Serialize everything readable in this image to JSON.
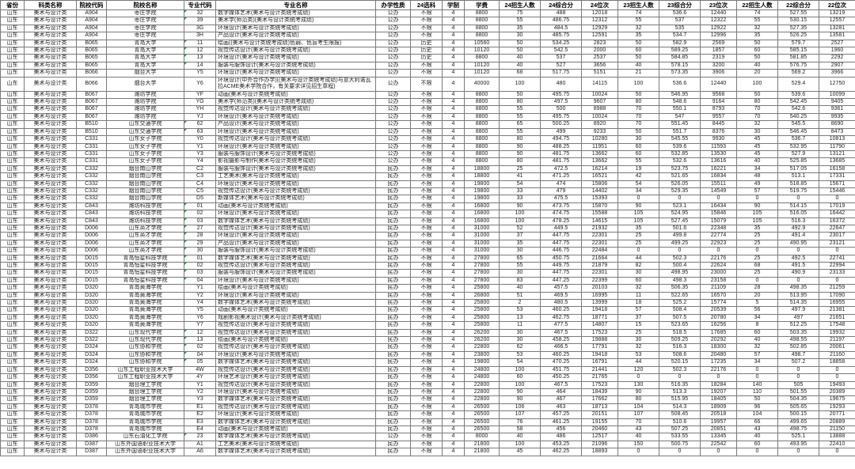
{
  "table": {
    "columns": [
      "省份",
      "科类名称",
      "院校代码",
      "院校名称",
      "专业代码",
      "专业名称",
      "办学性质",
      "24选科",
      "学制",
      "学费",
      "24招生人数",
      "24综合分",
      "24位次",
      "23招生人数",
      "23综合分",
      "23位次",
      "22招生人数",
      "22综合分",
      "22位次"
    ],
    "rows": [
      [
        "山东",
        "美术与设计类",
        "A904",
        "枣庄学院",
        "32",
        "数字媒体艺术(美术与设计类统考成绩)",
        "公办",
        "不限",
        "4",
        "8800",
        "75",
        "488",
        "12018",
        "74",
        "536.6",
        "12440",
        "74",
        "527.55",
        "13219"
      ],
      [
        "山东",
        "美术与设计类",
        "A904",
        "枣庄学院",
        "39",
        "美术学(师范类)(美术与设计类统考成绩)",
        "公办",
        "不限",
        "4",
        "8800",
        "55",
        "486.75",
        "12312",
        "55",
        "537",
        "12322",
        "55",
        "530.15",
        "12557"
      ],
      [
        "山东",
        "美术与设计类",
        "A904",
        "枣庄学院",
        "3G",
        "环境设计(美术与设计类统考成绩)",
        "公办",
        "不限",
        "4",
        "8800",
        "35",
        "484.5",
        "12929",
        "32",
        "535",
        "12922",
        "32",
        "527.35",
        "13281"
      ],
      [
        "山东",
        "美术与设计类",
        "A904",
        "枣庄学院",
        "3H",
        "产品设计(美术与设计类统考成绩)",
        "公办",
        "不限",
        "4",
        "8800",
        "30",
        "485.75",
        "12591",
        "35",
        "534.7",
        "12996",
        "35",
        "526.25",
        "13581"
      ],
      [
        "山东",
        "美术与设计类",
        "B065",
        "青岛大学",
        "11",
        "绘画((美术与设计类统考成绩)色弱、色盲考生限报)",
        "公办",
        "历史",
        "4",
        "10560",
        "50",
        "534.25",
        "2823",
        "50",
        "582.9",
        "2569",
        "50",
        "579.7",
        "2527"
      ],
      [
        "山东",
        "美术与设计类",
        "B065",
        "青岛大学",
        "12",
        "视觉传达设计(美术与设计类统考成绩)",
        "公办",
        "历史",
        "4",
        "10120",
        "50",
        "542.5",
        "2000",
        "60",
        "589.25",
        "1857",
        "60",
        "585.15",
        "1960"
      ],
      [
        "山东",
        "美术与设计类",
        "B065",
        "青岛大学",
        "13",
        "环境设计(美术与设计类统考成绩)",
        "公办",
        "历史",
        "4",
        "8800",
        "40",
        "537",
        "2537",
        "50",
        "584.85",
        "2319",
        "50",
        "581.85",
        "2292"
      ],
      [
        "山东",
        "美术与设计类",
        "B065",
        "青岛大学",
        "14",
        "服装与服饰设计(美术与设计类统考成绩)",
        "公办",
        "不限",
        "4",
        "10120",
        "40",
        "527",
        "3656",
        "40",
        "578.15",
        "3200",
        "40",
        "576.75",
        "2907"
      ],
      [
        "山东",
        "美术与设计类",
        "B066",
        "烟台大学",
        "Y5",
        "环境设计(美术与设计类统考成绩)",
        "公办",
        "不限",
        "4",
        "10120",
        "68",
        "517.75",
        "5151",
        "21",
        "573.35",
        "3906",
        "20",
        "569.2",
        "3966"
      ],
      [
        "山东",
        "美术与设计类",
        "B066",
        "烟台大学",
        "Y6",
        "环境设计(中外合作办学)((美术与设计类统考成绩)与意大利诺瓦拉ACME美术学院合作，有关要求详见招生章程)",
        "公办",
        "不限",
        "4",
        "40000",
        "100",
        "480",
        "14115",
        "100",
        "536.6",
        "12440",
        "100",
        "529.4",
        "12750"
      ],
      [
        "山东",
        "美术与设计类",
        "B067",
        "潍坊学院",
        "YF",
        "动画(美术与设计类统考成绩)",
        "公办",
        "不限",
        "4",
        "8800",
        "50",
        "495.75",
        "10024",
        "50",
        "546.95",
        "9568",
        "50",
        "539.6",
        "10099"
      ],
      [
        "山东",
        "美术与设计类",
        "B067",
        "潍坊学院",
        "YG",
        "美术学(师范类)(美术与设计类统考成绩)",
        "公办",
        "不限",
        "4",
        "8800",
        "80",
        "497.5",
        "9607",
        "80",
        "548.6",
        "9164",
        "80",
        "542.45",
        "9405"
      ],
      [
        "山东",
        "美术与设计类",
        "B067",
        "潍坊学院",
        "YH",
        "视觉传达设计(美术与设计类统考成绩)",
        "公办",
        "不限",
        "4",
        "8800",
        "55",
        "500",
        "8988",
        "70",
        "550.1",
        "8793",
        "70",
        "542.6",
        "9361"
      ],
      [
        "山东",
        "美术与设计类",
        "B067",
        "潍坊学院",
        "YJ",
        "环境设计(美术与设计类统考成绩)",
        "公办",
        "不限",
        "4",
        "8800",
        "55",
        "495.75",
        "10024",
        "70",
        "547",
        "9557",
        "70",
        "540.25",
        "9935"
      ],
      [
        "山东",
        "美术与设计类",
        "B510",
        "山东交通学院",
        "62",
        "产品设计(美术与设计类统考成绩)",
        "公办",
        "不限",
        "4",
        "8800",
        "65",
        "500.25",
        "8920",
        "70",
        "551.45",
        "8445",
        "32",
        "545.5",
        "8690"
      ],
      [
        "山东",
        "美术与设计类",
        "B510",
        "山东交通学院",
        "63",
        "环境设计(美术与设计类统考成绩)",
        "公办",
        "不限",
        "4",
        "8800",
        "55",
        "499",
        "9233",
        "50",
        "551.7",
        "8376",
        "30",
        "546.45",
        "8473"
      ],
      [
        "山东",
        "美术与设计类",
        "C331",
        "山东女子学院",
        "Y0",
        "视觉传达设计(美术与设计类统考成绩)",
        "公办",
        "不限",
        "4",
        "8800",
        "80",
        "494.75",
        "10280",
        "30",
        "545.55",
        "9930",
        "45",
        "536.7",
        "10813"
      ],
      [
        "山东",
        "美术与设计类",
        "C331",
        "山东女子学院",
        "Y1",
        "环境设计(美术与设计类统考成绩)",
        "公办",
        "不限",
        "4",
        "8800",
        "90",
        "488.25",
        "11951",
        "60",
        "539.6",
        "11593",
        "45",
        "532.95",
        "11790"
      ],
      [
        "山东",
        "美术与设计类",
        "C331",
        "山东女子学院",
        "Y3",
        "服装与服饰设计(美术与设计类统考成绩)",
        "公办",
        "不限",
        "4",
        "8800",
        "90",
        "481.75",
        "13662",
        "60",
        "532.85",
        "13530",
        "45",
        "527.9",
        "13121"
      ],
      [
        "山东",
        "美术与设计类",
        "C331",
        "山东女子学院",
        "Y4",
        "影视摄影与制作(美术与设计类统考成绩)",
        "公办",
        "不限",
        "4",
        "8800",
        "80",
        "481.75",
        "13662",
        "55",
        "532.6",
        "13616",
        "40",
        "525.85",
        "13685"
      ],
      [
        "山东",
        "美术与设计类",
        "C332",
        "烟台南山学院",
        "C2",
        "服装与服饰设计(美术与设计类统考成绩)",
        "民办",
        "不限",
        "4",
        "18800",
        "25",
        "472.5",
        "16214",
        "19",
        "523.75",
        "16221",
        "34",
        "517.05",
        "16158"
      ],
      [
        "山东",
        "美术与设计类",
        "C332",
        "烟台南山学院",
        "C3",
        "工艺美术(美术与设计类统考成绩)",
        "民办",
        "不限",
        "4",
        "18800",
        "41",
        "471.25",
        "16521",
        "42",
        "521.65",
        "16834",
        "48",
        "513.1",
        "17331"
      ],
      [
        "山东",
        "美术与设计类",
        "C332",
        "烟台南山学院",
        "C4",
        "环境设计(美术与设计类统考成绩)",
        "民办",
        "不限",
        "4",
        "19800",
        "54",
        "474",
        "15806",
        "54",
        "526.05",
        "15511",
        "49",
        "518.85",
        "15671"
      ],
      [
        "山东",
        "美术与设计类",
        "C332",
        "烟台南山学院",
        "C5",
        "视觉传达设计(美术与设计类统考成绩)",
        "民办",
        "不限",
        "4",
        "19800",
        "33",
        "479",
        "14402",
        "34",
        "529.35",
        "14549",
        "57",
        "519.75",
        "15446"
      ],
      [
        "山东",
        "美术与设计类",
        "C332",
        "烟台南山学院",
        "D5",
        "新媒体艺术(美术与设计类统考成绩)",
        "民办",
        "不限",
        "4",
        "19800",
        "33",
        "475.5",
        "15393",
        "0",
        "0",
        "0",
        "0",
        "0",
        "0"
      ],
      [
        "山东",
        "美术与设计类",
        "C843",
        "潍坊科技学院",
        "01",
        "动画(美术与设计类统考成绩)",
        "民办",
        "不限",
        "4",
        "16800",
        "90",
        "473.75",
        "15870",
        "90",
        "523.1",
        "16434",
        "90",
        "514.15",
        "17019"
      ],
      [
        "山东",
        "美术与设计类",
        "C843",
        "潍坊科技学院",
        "02",
        "环境设计(美术与设计类统考成绩)",
        "民办",
        "不限",
        "4",
        "16800",
        "100",
        "474.75",
        "15588",
        "105",
        "524.95",
        "15846",
        "105",
        "516.05",
        "16442"
      ],
      [
        "山东",
        "美术与设计类",
        "C843",
        "潍坊科技学院",
        "03",
        "数字媒体艺术(美术与设计类统考成绩)",
        "民办",
        "不限",
        "4",
        "16800",
        "100",
        "478.25",
        "14615",
        "105",
        "527.45",
        "15079",
        "105",
        "516.3",
        "16372"
      ],
      [
        "山东",
        "美术与设计类",
        "D006",
        "山东英才学院",
        "27",
        "视觉传达设计(美术与设计类统考成绩)",
        "民办",
        "不限",
        "4",
        "31000",
        "52",
        "449.5",
        "21932",
        "35",
        "501.6",
        "22348",
        "35",
        "492.9",
        "22647"
      ],
      [
        "山东",
        "美术与设计类",
        "D006",
        "山东英才学院",
        "28",
        "环境设计(美术与设计类统考成绩)",
        "民办",
        "不限",
        "4",
        "31000",
        "37",
        "447.75",
        "22301",
        "25",
        "499.8",
        "22774",
        "25",
        "491.4",
        "23017"
      ],
      [
        "山东",
        "美术与设计类",
        "D006",
        "山东英才学院",
        "29",
        "产品设计(美术与设计类统考成绩)",
        "民办",
        "不限",
        "4",
        "31000",
        "35",
        "447.75",
        "22301",
        "25",
        "499.25",
        "22923",
        "25",
        "490.95",
        "23121"
      ],
      [
        "山东",
        "美术与设计类",
        "D006",
        "山东英才学院",
        "30",
        "服装与服饰设计(美术与设计类统考成绩)",
        "民办",
        "不限",
        "4",
        "31000",
        "30",
        "446.75",
        "22484",
        "0",
        "0",
        "0",
        "0",
        "0",
        "0"
      ],
      [
        "山东",
        "美术与设计类",
        "D015",
        "青岛恒星科技学院",
        "01",
        "数字媒体艺术(美术与设计类统考成绩)",
        "民办",
        "不限",
        "4",
        "27800",
        "65",
        "450.75",
        "21664",
        "44",
        "502.3",
        "22176",
        "25",
        "492.5",
        "22741"
      ],
      [
        "山东",
        "美术与设计类",
        "D015",
        "青岛恒星科技学院",
        "02",
        "视觉传达设计(美术与设计类统考成绩)",
        "民办",
        "不限",
        "4",
        "27800",
        "55",
        "449.75",
        "21879",
        "82",
        "500.4",
        "22624",
        "68",
        "491.5",
        "22994"
      ],
      [
        "山东",
        "美术与设计类",
        "D015",
        "青岛恒星科技学院",
        "03",
        "服装与服饰设计(美术与设计类统考成绩)",
        "民办",
        "不限",
        "4",
        "27800",
        "30",
        "447.75",
        "22301",
        "30",
        "498.95",
        "23000",
        "25",
        "490.9",
        "23133"
      ],
      [
        "山东",
        "美术与设计类",
        "D015",
        "青岛恒星科技学院",
        "04",
        "环境设计(美术与设计类统考成绩)",
        "民办",
        "不限",
        "4",
        "27800",
        "83",
        "447.25",
        "22399",
        "60",
        "498.3",
        "23158",
        "0",
        "0",
        "0"
      ],
      [
        "山东",
        "美术与设计类",
        "D320",
        "青岛黄海学院",
        "Y1",
        "绘画(美术与设计类统考成绩)",
        "民办",
        "不限",
        "4",
        "25800",
        "40",
        "457.5",
        "20103",
        "32",
        "506.35",
        "21109",
        "28",
        "498.35",
        "21259"
      ],
      [
        "山东",
        "美术与设计类",
        "D320",
        "青岛黄海学院",
        "Y2",
        "环境设计(美术与设计类统考成绩)",
        "民办",
        "不限",
        "4",
        "26800",
        "51",
        "469.5",
        "16995",
        "11",
        "522.65",
        "16570",
        "20",
        "513.95",
        "17090"
      ],
      [
        "山东",
        "美术与设计类",
        "D320",
        "青岛黄海学院",
        "Y4",
        "数字媒体艺术(美术与设计类统考成绩)",
        "民办",
        "不限",
        "4",
        "25800",
        "2",
        "480.5",
        "13999",
        "18",
        "525.2",
        "15774",
        "5",
        "514.35",
        "16955"
      ],
      [
        "山东",
        "美术与设计类",
        "D320",
        "青岛黄海学院",
        "Y5",
        "动画(美术与设计类统考成绩)",
        "民办",
        "不限",
        "4",
        "25800",
        "53",
        "460.25",
        "19418",
        "57",
        "508.4",
        "20539",
        "56",
        "497.9",
        "21381"
      ],
      [
        "山东",
        "美术与设计类",
        "D320",
        "青岛黄海学院",
        "Y6",
        "戏剧影视美术设计(美术与设计类统考成绩)",
        "民办",
        "不限",
        "4",
        "25800",
        "13",
        "462.75",
        "18771",
        "37",
        "507.5",
        "20780",
        "34",
        "497",
        "21651"
      ],
      [
        "山东",
        "美术与设计类",
        "D320",
        "青岛黄海学院",
        "Y7",
        "视觉传达设计(美术与设计类统考成绩)",
        "民办",
        "不限",
        "4",
        "25800",
        "11",
        "477.5",
        "14807",
        "15",
        "523.65",
        "16256",
        "8",
        "512.25",
        "17548"
      ],
      [
        "山东",
        "美术与设计类",
        "D322",
        "山东现代学院",
        "12",
        "视觉传达设计(美术与设计类统考成绩)",
        "民办",
        "不限",
        "4",
        "26200",
        "30",
        "467.5",
        "17523",
        "25",
        "518.5",
        "17685",
        "60",
        "503.35",
        "19932"
      ],
      [
        "山东",
        "美术与设计类",
        "D322",
        "山东现代学院",
        "13",
        "绘画(美术与设计类统考成绩)",
        "民办",
        "不限",
        "4",
        "26200",
        "30",
        "458.25",
        "19888",
        "30",
        "509.25",
        "20292",
        "40",
        "498.55",
        "21197"
      ],
      [
        "山东",
        "美术与设计类",
        "D324",
        "山东协和学院",
        "02",
        "视觉传达设计(美术与设计类统考成绩)",
        "民办",
        "不限",
        "4",
        "22800",
        "62",
        "466.5",
        "17791",
        "32",
        "516.3",
        "18300",
        "32",
        "502.85",
        "20061"
      ],
      [
        "山东",
        "美术与设计类",
        "D324",
        "山东协和学院",
        "04",
        "环境设计(美术与设计类统考成绩)",
        "民办",
        "不限",
        "4",
        "23800",
        "53",
        "460.25",
        "19418",
        "53",
        "508.6",
        "20480",
        "57",
        "498.7",
        "21160"
      ],
      [
        "山东",
        "美术与设计类",
        "D324",
        "山东协和学院",
        "05",
        "数字媒体艺术(美术与设计类统考成绩)",
        "民办",
        "不限",
        "4",
        "19800",
        "54",
        "470.25",
        "16791",
        "44",
        "520.15",
        "17235",
        "34",
        "507.2",
        "18858"
      ],
      [
        "山东",
        "美术与设计类",
        "D356",
        "山东工程职业技术大学",
        "4W",
        "视觉传达设计(美术与设计类统考成绩)",
        "民办",
        "不限",
        "4",
        "24800",
        "100",
        "451.75",
        "21441",
        "120",
        "502.3",
        "22176",
        "0",
        "0",
        "0"
      ],
      [
        "山东",
        "美术与设计类",
        "D356",
        "山东工程职业技术大学",
        "4Y",
        "环境艺术设计(美术与设计类统考成绩)",
        "民办",
        "不限",
        "4",
        "24800",
        "60",
        "450.25",
        "21765",
        "0",
        "0",
        "0",
        "0",
        "0",
        "0"
      ],
      [
        "山东",
        "美术与设计类",
        "D359",
        "烟台理工学院",
        "Y1",
        "视觉传达设计(美术与设计类统考成绩)",
        "民办",
        "不限",
        "4",
        "22800",
        "100",
        "467.5",
        "17523",
        "130",
        "516.35",
        "18284",
        "140",
        "505",
        "19493"
      ],
      [
        "山东",
        "美术与设计类",
        "D359",
        "烟台理工学院",
        "Y2",
        "环境设计(美术与设计类统考成绩)",
        "民办",
        "不限",
        "4",
        "22800",
        "90",
        "464",
        "18439",
        "90",
        "513.3",
        "19207",
        "110",
        "501.55",
        "20389"
      ],
      [
        "山东",
        "美术与设计类",
        "D359",
        "烟台理工学院",
        "Y3",
        "数字媒体艺术(美术与设计类统考成绩)",
        "民办",
        "不限",
        "4",
        "22800",
        "90",
        "467",
        "17662",
        "80",
        "515.95",
        "18405",
        "50",
        "504.35",
        "19675"
      ],
      [
        "山东",
        "美术与设计类",
        "D378",
        "青岛城市学院",
        "E1",
        "视觉传达设计(美术与设计类统考成绩)",
        "民办",
        "不限",
        "4",
        "26500",
        "106",
        "463",
        "18713",
        "104",
        "514.3",
        "18909",
        "96",
        "505.65",
        "19293"
      ],
      [
        "山东",
        "美术与设计类",
        "D378",
        "青岛城市学院",
        "E2",
        "环境设计(美术与设计类统考成绩)",
        "民办",
        "不限",
        "4",
        "26500",
        "107",
        "457.25",
        "20151",
        "107",
        "508.45",
        "20518",
        "104",
        "500.15",
        "20771"
      ],
      [
        "山东",
        "美术与设计类",
        "D378",
        "青岛城市学院",
        "E3",
        "数字媒体艺术(美术与设计类统考成绩)",
        "民办",
        "不限",
        "4",
        "26500",
        "76",
        "461.25",
        "19155",
        "70",
        "510.6",
        "19957",
        "66",
        "499.65",
        "20889"
      ],
      [
        "山东",
        "美术与设计类",
        "D378",
        "青岛城市学院",
        "E4",
        "动画(美术与设计类统考成绩)",
        "民办",
        "不限",
        "4",
        "26500",
        "58",
        "456",
        "20460",
        "43",
        "507.25",
        "20851",
        "43",
        "498.75",
        "21150"
      ],
      [
        "山东",
        "美术与设计类",
        "D386",
        "山东石油化工学院",
        "23",
        "数字媒体艺术(美术与设计类统考成绩)",
        "公办",
        "不限",
        "4",
        "8000",
        "40",
        "486",
        "12517",
        "40",
        "533.55",
        "13345",
        "40",
        "525.1",
        "13888"
      ],
      [
        "山东",
        "美术与设计类",
        "D387",
        "山东外国语职业技术大学",
        "A1",
        "工艺美术(美术与设计类统考成绩)",
        "民办",
        "不限",
        "4",
        "21800",
        "100",
        "453.25",
        "21096",
        "150",
        "500.75",
        "22542",
        "60",
        "493.95",
        "22410"
      ],
      [
        "山东",
        "美术与设计类",
        "D387",
        "山东外国语职业技术大学",
        "A6",
        "数字媒体艺术(美术与设计类统考成绩)",
        "民办",
        "不限",
        "4",
        "21800",
        "45",
        "462.25",
        "18893",
        "0",
        "0",
        "0",
        "0",
        "0",
        "0"
      ]
    ]
  },
  "colors": {
    "grid": "#7a7a7a",
    "text": "#1f1f1f",
    "flag_triangle_green": "#1f9d3a"
  },
  "icons": {
    "flag_triangle": "number-stored-as-text-indicator"
  }
}
